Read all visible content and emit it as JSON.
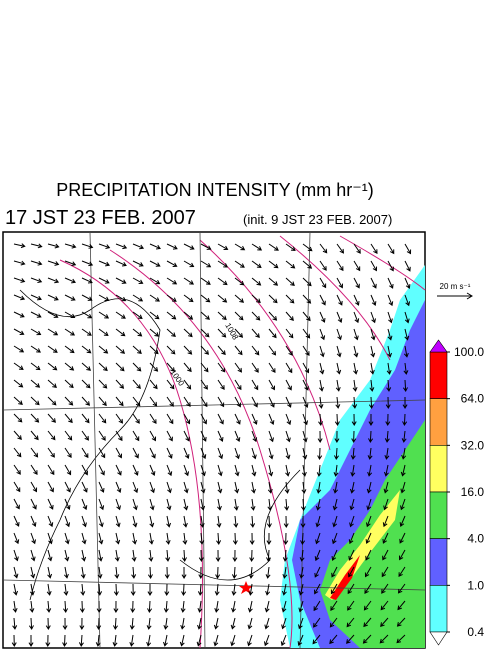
{
  "header": {
    "title": "PRECIPITATION INTENSITY (mm hr⁻¹)",
    "time": "17 JST 23 FEB. 2007",
    "init": "(init. 9 JST 23 FEB. 2007)"
  },
  "wind_scale": {
    "label": "20 m s⁻¹"
  },
  "contour_labels": [
    "1008",
    "1000"
  ],
  "colorbar": {
    "levels": [
      {
        "value": 100,
        "label": "100.0"
      },
      {
        "value": 64,
        "label": "64.0"
      },
      {
        "value": 32,
        "label": "32.0"
      },
      {
        "value": 16,
        "label": "16.0"
      },
      {
        "value": 4,
        "label": "4.0"
      },
      {
        "value": 1,
        "label": "1.0"
      },
      {
        "value": 0.4,
        "label": "0.4"
      }
    ],
    "colors": [
      "#ff0000",
      "#ffa040",
      "#ffff60",
      "#50e050",
      "#6060ff",
      "#60ffff"
    ],
    "over_color": "#c000ff",
    "under_color": "#ffffff"
  }
}
